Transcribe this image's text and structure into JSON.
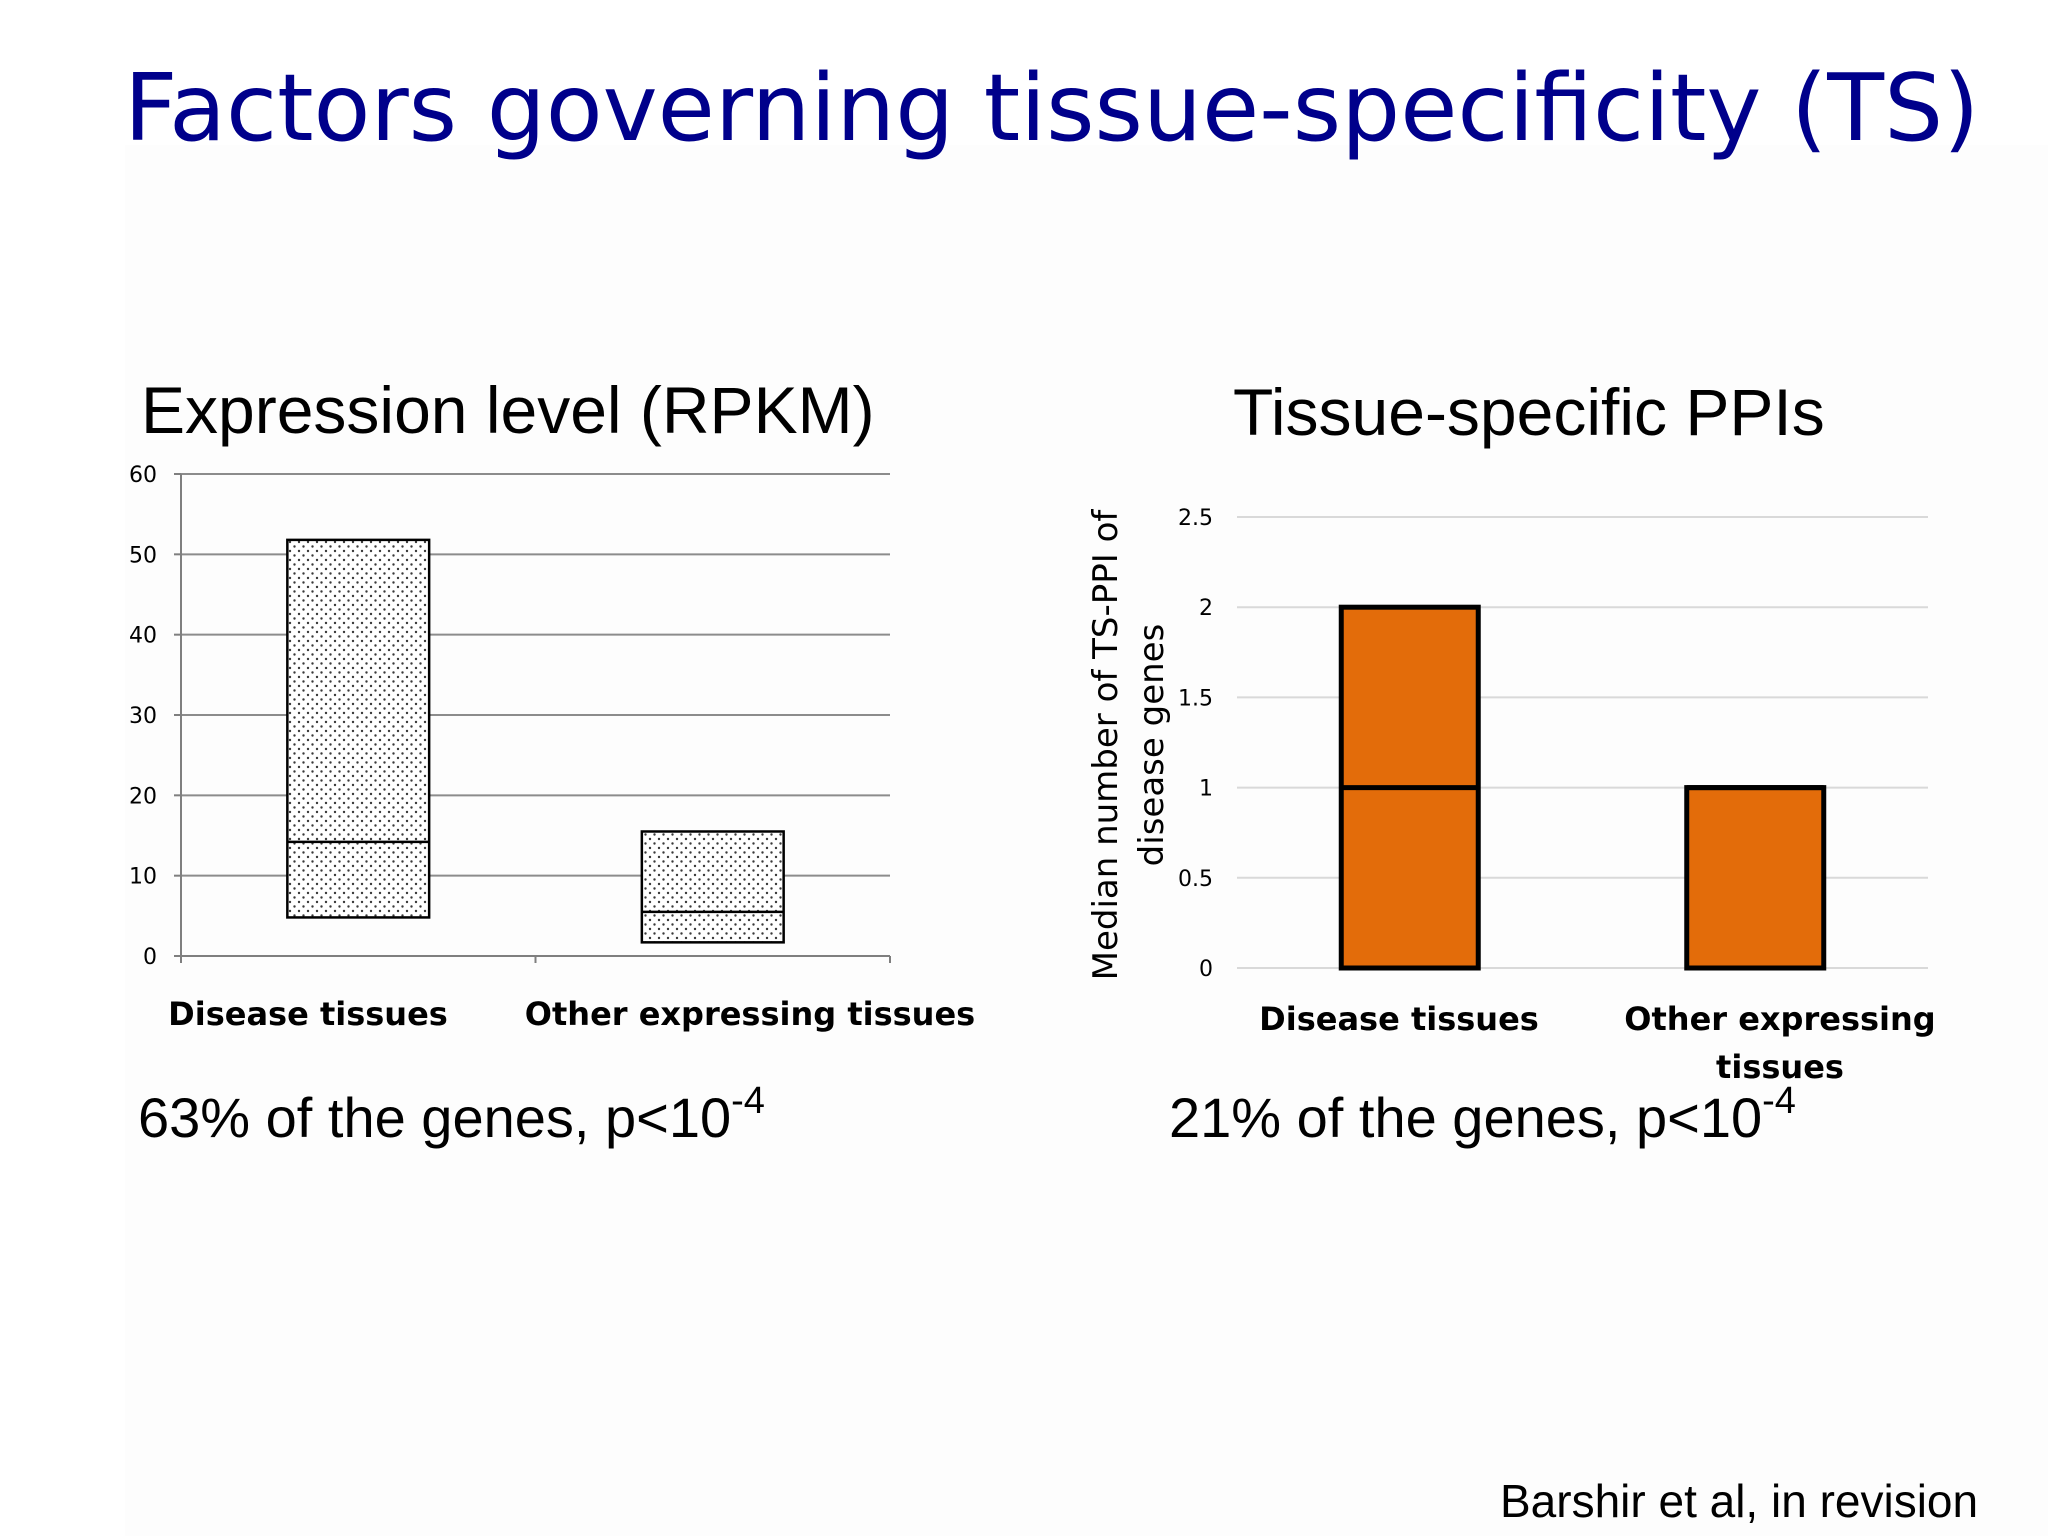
{
  "slide": {
    "title": "Factors governing tissue-specificity (TS)",
    "citation": "Barshir et al, in revision"
  },
  "left": {
    "subtitle": "Expression level (RPKM)",
    "stat_text": "63% of the genes, p<10",
    "stat_exp": "-4"
  },
  "right": {
    "subtitle": "Tissue-specific PPIs",
    "stat_text": "21% of the genes, p<10",
    "stat_exp": "-4"
  },
  "chart_data": [
    {
      "type": "bar",
      "style": "floating box (interquartile range with median line)",
      "categories": [
        "Disease tissues",
        "Other expressing tissues"
      ],
      "boxes": [
        {
          "low": 4.8,
          "median": 14.2,
          "high": 51.8
        },
        {
          "low": 1.7,
          "median": 5.5,
          "high": 15.5
        }
      ],
      "yticks": [
        "0",
        "10",
        "20",
        "30",
        "40",
        "50",
        "60"
      ],
      "ylim": [
        0,
        60
      ],
      "grid": true,
      "fill": "dotted",
      "colors": {
        "fill": "#ffffff",
        "dots": "#3a3a3a",
        "edge": "#000000",
        "grid": "#8c8c8c"
      }
    },
    {
      "type": "bar",
      "style": "floating box (interquartile range with median line)",
      "categories": [
        "Disease tissues",
        "Other expressing tissues"
      ],
      "category_lines": [
        [
          "Disease tissues"
        ],
        [
          "Other expressing",
          "tissues"
        ]
      ],
      "boxes": [
        {
          "low": 0,
          "median": 1,
          "high": 2
        },
        {
          "low": 0,
          "median": 1,
          "high": 1
        }
      ],
      "yticks": [
        "0",
        "0.5",
        "1",
        "1.5",
        "2",
        "2.5"
      ],
      "ylim": [
        0,
        2.5
      ],
      "ylabel_lines": [
        "Median number of TS-PPI of",
        "disease genes"
      ],
      "grid": true,
      "colors": {
        "fill": "#e36c0a",
        "edge": "#000000",
        "grid": "#d9d9d9"
      }
    }
  ]
}
